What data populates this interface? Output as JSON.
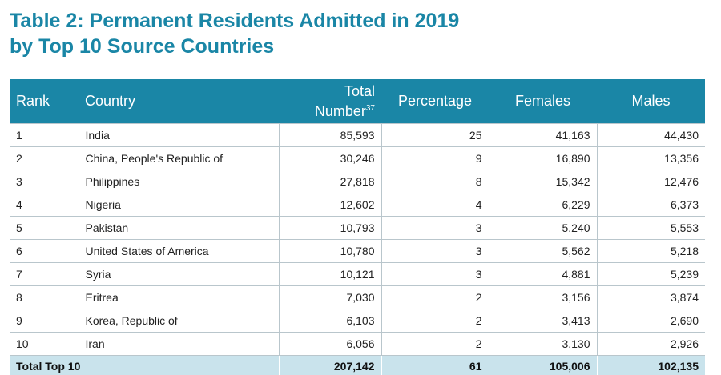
{
  "title": {
    "line1": "Table 2: Permanent Residents Admitted in 2019",
    "line2": "by Top 10 Source Countries"
  },
  "columns": {
    "rank": "Rank",
    "country": "Country",
    "total_line1": "Total",
    "total_line2": "Number",
    "total_footnote": "37",
    "percentage": "Percentage",
    "females": "Females",
    "males": "Males"
  },
  "rows": [
    {
      "rank": "1",
      "country": "India",
      "total": "85,593",
      "percentage": "25",
      "females": "41,163",
      "males": "44,430"
    },
    {
      "rank": "2",
      "country": "China, People's Republic of",
      "total": "30,246",
      "percentage": "9",
      "females": "16,890",
      "males": "13,356"
    },
    {
      "rank": "3",
      "country": "Philippines",
      "total": "27,818",
      "percentage": "8",
      "females": "15,342",
      "males": "12,476"
    },
    {
      "rank": "4",
      "country": "Nigeria",
      "total": "12,602",
      "percentage": "4",
      "females": "6,229",
      "males": "6,373"
    },
    {
      "rank": "5",
      "country": "Pakistan",
      "total": "10,793",
      "percentage": "3",
      "females": "5,240",
      "males": "5,553"
    },
    {
      "rank": "6",
      "country": "United States of America",
      "total": "10,780",
      "percentage": "3",
      "females": "5,562",
      "males": "5,218"
    },
    {
      "rank": "7",
      "country": "Syria",
      "total": "10,121",
      "percentage": "3",
      "females": "4,881",
      "males": "5,239"
    },
    {
      "rank": "8",
      "country": "Eritrea",
      "total": "7,030",
      "percentage": "2",
      "females": "3,156",
      "males": "3,874"
    },
    {
      "rank": "9",
      "country": "Korea, Republic of",
      "total": "6,103",
      "percentage": "2",
      "females": "3,413",
      "males": "2,690"
    },
    {
      "rank": "10",
      "country": "Iran",
      "total": "6,056",
      "percentage": "2",
      "females": "3,130",
      "males": "2,926"
    }
  ],
  "footer": {
    "label": "Total Top 10",
    "total": "207,142",
    "percentage": "61",
    "females": "105,006",
    "males": "102,135"
  },
  "colors": {
    "accent": "#1a86a6",
    "footer_bg": "#c9e3ec"
  }
}
